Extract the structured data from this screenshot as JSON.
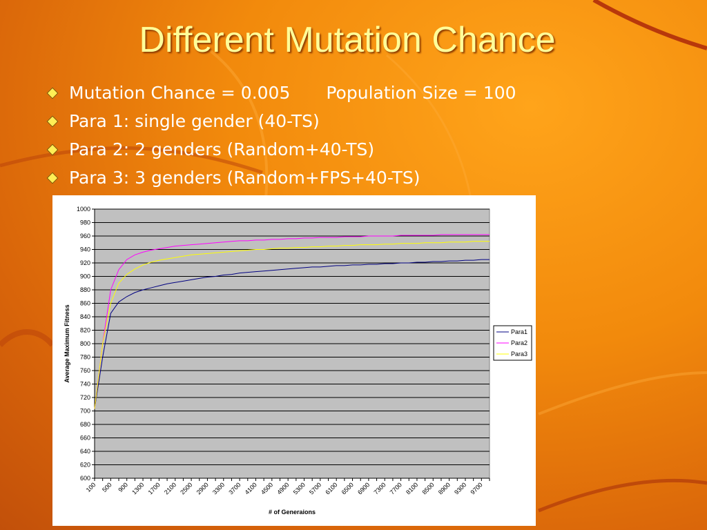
{
  "slide": {
    "title": "Different Mutation Chance",
    "bullets": [
      [
        "Mutation Chance = 0.005",
        "Population Size = 100"
      ],
      [
        "Para 1: single gender (40-TS)"
      ],
      [
        "Para 2: 2 genders (Random+40-TS)"
      ],
      [
        "Para 3: 3 genders (Random+FPS+40-TS)"
      ]
    ]
  },
  "chart_data": {
    "type": "line",
    "x_label": "# of Generaions",
    "y_label": "Average Maximum Fitness",
    "categories": [
      "100",
      null,
      "500",
      null,
      "900",
      null,
      "1300",
      null,
      "1700",
      null,
      "2100",
      null,
      "2500",
      null,
      "2900",
      null,
      "3300",
      null,
      "3700",
      null,
      "4100",
      null,
      "4500",
      null,
      "4900",
      null,
      "5300",
      null,
      "5700",
      null,
      "6100",
      null,
      "6500",
      null,
      "6900",
      null,
      "7300",
      null,
      "7700",
      null,
      "8100",
      null,
      "8500",
      null,
      "8900",
      null,
      "9300",
      null,
      "9700",
      null
    ],
    "ylim": [
      600,
      1000
    ],
    "yticks": [
      600,
      620,
      640,
      660,
      680,
      700,
      720,
      740,
      760,
      780,
      800,
      820,
      840,
      860,
      880,
      900,
      920,
      940,
      960,
      980,
      1000
    ],
    "grid": true,
    "plot_background": "#c0c0c0",
    "legend": "right",
    "series": [
      {
        "name": "Para1",
        "color": "#000080",
        "values": [
          703,
          780,
          845,
          862,
          870,
          876,
          880,
          883,
          886,
          889,
          891,
          893,
          895,
          897,
          899,
          900,
          902,
          903,
          905,
          906,
          907,
          908,
          909,
          910,
          911,
          912,
          913,
          914,
          914,
          915,
          916,
          916,
          917,
          917,
          918,
          918,
          919,
          919,
          920,
          920,
          921,
          921,
          922,
          922,
          923,
          923,
          924,
          924,
          925,
          925
        ]
      },
      {
        "name": "Para2",
        "color": "#ff00ff",
        "values": [
          703,
          800,
          880,
          910,
          925,
          932,
          936,
          939,
          941,
          943,
          945,
          946,
          947,
          948,
          949,
          950,
          951,
          952,
          953,
          953,
          954,
          954,
          955,
          955,
          956,
          956,
          957,
          957,
          958,
          958,
          958,
          959,
          959,
          959,
          960,
          960,
          960,
          960,
          961,
          961,
          961,
          961,
          961,
          962,
          962,
          962,
          962,
          962,
          962,
          962
        ]
      },
      {
        "name": "Para3",
        "color": "#ffff00",
        "values": [
          703,
          800,
          860,
          890,
          903,
          911,
          917,
          921,
          924,
          926,
          928,
          930,
          932,
          933,
          934,
          935,
          936,
          937,
          938,
          939,
          940,
          940,
          941,
          942,
          942,
          943,
          943,
          944,
          944,
          945,
          945,
          946,
          946,
          947,
          947,
          947,
          948,
          948,
          949,
          949,
          949,
          950,
          950,
          950,
          951,
          951,
          951,
          952,
          952,
          952
        ]
      }
    ]
  }
}
